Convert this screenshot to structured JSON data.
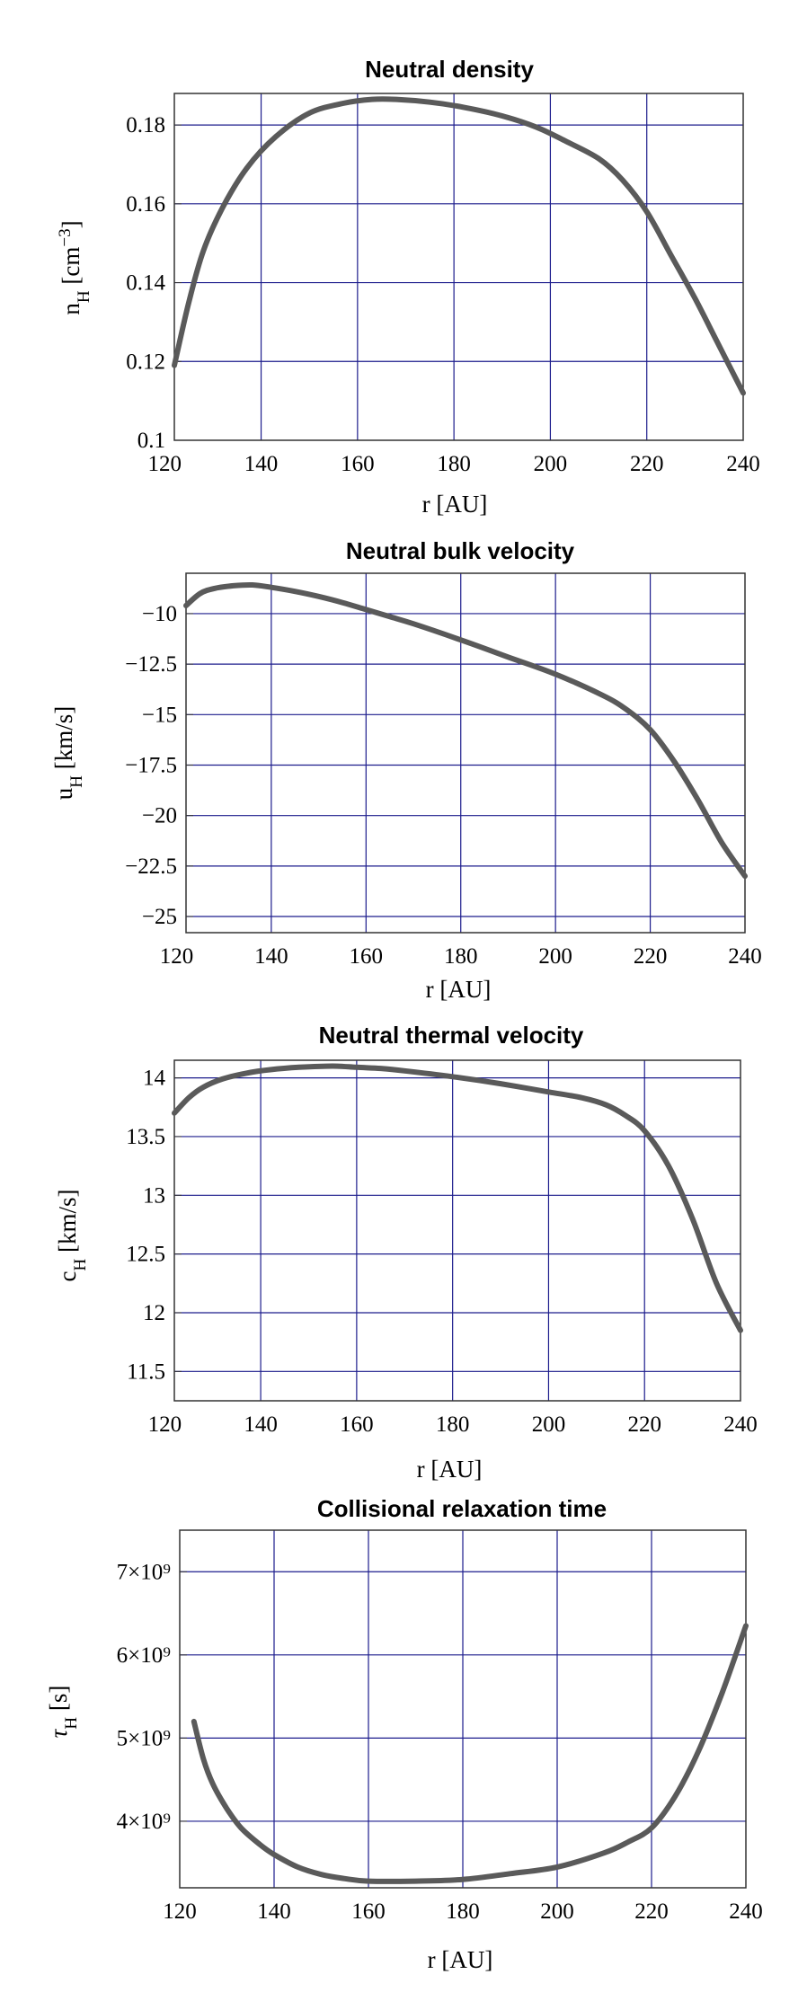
{
  "colors": {
    "curve": "#5a5a5a",
    "grid": "#1c1c8c",
    "frame": "#333333"
  },
  "chart_data": [
    {
      "type": "line",
      "title": "Neutral density",
      "xlabel": "r [AU]",
      "ylabel": {
        "main": "n",
        "sub": "H",
        "unit": " [cm",
        "sup": "−3",
        "close": "]"
      },
      "xlim": [
        122,
        240
      ],
      "ylim": [
        0.1,
        0.188
      ],
      "xticks": [
        120,
        140,
        160,
        180,
        200,
        220,
        240
      ],
      "yticks": [
        0.1,
        0.12,
        0.14,
        0.16,
        0.18
      ],
      "ytick_labels": [
        "0.1",
        "0.12",
        "0.14",
        "0.16",
        "0.18"
      ],
      "xgrid": [
        140,
        160,
        180,
        200,
        220
      ],
      "ygrid": [
        0.12,
        0.14,
        0.16,
        0.18
      ],
      "grid": true,
      "series": [
        {
          "name": "n_H",
          "x": [
            122,
            125,
            128,
            132,
            137,
            143,
            150,
            157,
            163,
            168,
            175,
            182,
            190,
            197,
            203,
            210,
            215,
            220,
            225,
            230,
            235,
            240
          ],
          "y": [
            0.119,
            0.135,
            0.148,
            0.159,
            0.169,
            0.177,
            0.183,
            0.1855,
            0.1865,
            0.1865,
            0.1858,
            0.1845,
            0.1823,
            0.1795,
            0.176,
            0.1715,
            0.166,
            0.158,
            0.147,
            0.136,
            0.124,
            0.112
          ]
        }
      ]
    },
    {
      "type": "line",
      "title": "Neutral bulk velocity",
      "xlabel": "r [AU]",
      "ylabel": {
        "main": "u",
        "sub": "H",
        "unit": " [km/s]",
        "sup": "",
        "close": ""
      },
      "xlim": [
        122,
        240
      ],
      "ylim": [
        -25.8,
        -8
      ],
      "xticks": [
        120,
        140,
        160,
        180,
        200,
        220,
        240
      ],
      "yticks": [
        -10,
        -12.5,
        -15,
        -17.5,
        -20,
        -22.5,
        -25
      ],
      "ytick_labels": [
        "−10",
        "−12.5",
        "−15",
        "−17.5",
        "−20",
        "−22.5",
        "−25"
      ],
      "xgrid": [
        140,
        160,
        180,
        200,
        220
      ],
      "ygrid": [
        -10,
        -12.5,
        -15,
        -17.5,
        -20,
        -22.5,
        -25
      ],
      "grid": true,
      "series": [
        {
          "name": "u_H",
          "x": [
            122,
            125,
            128,
            132,
            136,
            140,
            145,
            150,
            155,
            160,
            165,
            170,
            180,
            190,
            200,
            210,
            215,
            220,
            225,
            230,
            235,
            240
          ],
          "y": [
            -9.6,
            -9.0,
            -8.75,
            -8.62,
            -8.58,
            -8.7,
            -8.9,
            -9.15,
            -9.45,
            -9.8,
            -10.15,
            -10.5,
            -11.3,
            -12.15,
            -13.0,
            -14.05,
            -14.75,
            -15.75,
            -17.3,
            -19.2,
            -21.3,
            -23.0
          ]
        }
      ]
    },
    {
      "type": "line",
      "title": "Neutral thermal velocity",
      "xlabel": "r [AU]",
      "ylabel": {
        "main": "c",
        "sub": "H",
        "unit": " [km/s]",
        "sup": "",
        "close": ""
      },
      "xlim": [
        122,
        240
      ],
      "ylim": [
        11.25,
        14.15
      ],
      "xticks": [
        120,
        140,
        160,
        180,
        200,
        220,
        240
      ],
      "yticks": [
        11.5,
        12,
        12.5,
        13,
        13.5,
        14
      ],
      "ytick_labels": [
        "11.5",
        "12",
        "12.5",
        "13",
        "13.5",
        "14"
      ],
      "xgrid": [
        140,
        160,
        180,
        200,
        220
      ],
      "ygrid": [
        11.5,
        12,
        12.5,
        13,
        13.5,
        14
      ],
      "grid": true,
      "series": [
        {
          "name": "c_H",
          "x": [
            122,
            125,
            128,
            132,
            137,
            142,
            148,
            155,
            160,
            165,
            170,
            180,
            190,
            200,
            207,
            212,
            216,
            220,
            225,
            230,
            235,
            240
          ],
          "y": [
            13.7,
            13.83,
            13.92,
            13.99,
            14.04,
            14.07,
            14.09,
            14.1,
            14.09,
            14.08,
            14.06,
            14.01,
            13.95,
            13.88,
            13.83,
            13.77,
            13.68,
            13.55,
            13.25,
            12.8,
            12.25,
            11.85
          ]
        }
      ]
    },
    {
      "type": "line",
      "title": "Collisional relaxation time",
      "xlabel": "r [AU]",
      "ylabel": {
        "main": "τ",
        "sub": "H",
        "unit": " [s]",
        "sup": "",
        "close": ""
      },
      "xlim": [
        120,
        240
      ],
      "ylim": [
        3200000000.0,
        7500000000.0
      ],
      "xticks": [
        120,
        140,
        160,
        180,
        200,
        220,
        240
      ],
      "yticks": [
        4000000000.0,
        5000000000.0,
        6000000000.0,
        7000000000.0
      ],
      "ytick_labels": [
        "4×10⁹",
        "5×10⁹",
        "6×10⁹",
        "7×10⁹"
      ],
      "xgrid": [
        140,
        160,
        180,
        200,
        220
      ],
      "ygrid": [
        4000000000.0,
        5000000000.0,
        6000000000.0,
        7000000000.0
      ],
      "grid": true,
      "series": [
        {
          "name": "tau_H",
          "x": [
            123,
            125,
            127,
            130,
            133,
            137,
            140,
            145,
            150,
            155,
            160,
            170,
            180,
            190,
            200,
            210,
            215,
            220,
            225,
            230,
            235,
            240
          ],
          "y": [
            5200000000.0,
            4750000000.0,
            4450000000.0,
            4150000000.0,
            3920000000.0,
            3720000000.0,
            3600000000.0,
            3450000000.0,
            3360000000.0,
            3310000000.0,
            3280000000.0,
            3280000000.0,
            3300000000.0,
            3370000000.0,
            3450000000.0,
            3620000000.0,
            3750000000.0,
            3920000000.0,
            4300000000.0,
            4850000000.0,
            5550000000.0,
            6350000000.0
          ]
        }
      ]
    }
  ]
}
